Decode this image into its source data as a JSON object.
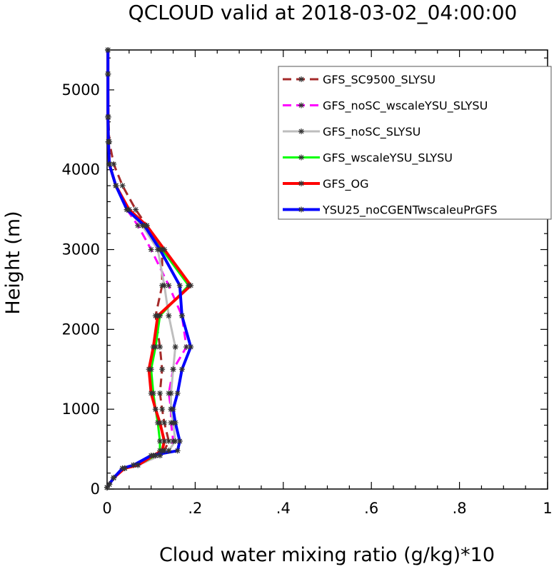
{
  "chart_data": {
    "type": "line",
    "title": "QCLOUD valid at 2018-03-02_04:00:00",
    "xlabel": "Cloud water mixing ratio (g/kg)*10",
    "ylabel": "Height (m)",
    "xlim": [
      0,
      1
    ],
    "ylim": [
      0,
      5500
    ],
    "x_ticks": [
      0,
      0.2,
      0.4,
      0.6,
      0.8,
      1.0
    ],
    "x_tick_labels": [
      "0",
      ".2",
      ".4",
      ".6",
      ".8",
      "1"
    ],
    "y_ticks": [
      0,
      1000,
      2000,
      3000,
      4000,
      5000
    ],
    "y_tick_labels": [
      "0",
      "1000",
      "2000",
      "3000",
      "4000",
      "5000"
    ],
    "grid": false,
    "legend_position": "top-right",
    "series": [
      {
        "name": "GFS_SC9500_SLYSU",
        "color": "#a52a2a",
        "dash": "dashed",
        "width": 3,
        "points": [
          [
            0.0,
            20
          ],
          [
            0.005,
            60
          ],
          [
            0.015,
            140
          ],
          [
            0.035,
            260
          ],
          [
            0.06,
            300
          ],
          [
            0.11,
            420
          ],
          [
            0.13,
            480
          ],
          [
            0.14,
            600
          ],
          [
            0.13,
            830
          ],
          [
            0.125,
            1000
          ],
          [
            0.12,
            1200
          ],
          [
            0.125,
            1500
          ],
          [
            0.12,
            1780
          ],
          [
            0.11,
            2170
          ],
          [
            0.125,
            2550
          ],
          [
            0.125,
            3000
          ],
          [
            0.09,
            3300
          ],
          [
            0.065,
            3500
          ],
          [
            0.035,
            3800
          ],
          [
            0.015,
            4070
          ],
          [
            0.005,
            4350
          ],
          [
            0.003,
            4660
          ],
          [
            0.002,
            5200
          ],
          [
            0.002,
            5500
          ]
        ]
      },
      {
        "name": "GFS_noSC_wscaleYSU_SLYSU",
        "color": "#ff00ff",
        "dash": "dashed",
        "width": 3,
        "points": [
          [
            0.0,
            20
          ],
          [
            0.005,
            60
          ],
          [
            0.015,
            140
          ],
          [
            0.04,
            260
          ],
          [
            0.07,
            300
          ],
          [
            0.12,
            420
          ],
          [
            0.14,
            480
          ],
          [
            0.15,
            600
          ],
          [
            0.145,
            830
          ],
          [
            0.145,
            1000
          ],
          [
            0.14,
            1200
          ],
          [
            0.15,
            1500
          ],
          [
            0.18,
            1780
          ],
          [
            0.17,
            2170
          ],
          [
            0.14,
            2550
          ],
          [
            0.1,
            3000
          ],
          [
            0.07,
            3300
          ],
          [
            0.045,
            3500
          ],
          [
            0.02,
            3800
          ],
          [
            0.005,
            4070
          ],
          [
            0.003,
            4350
          ],
          [
            0.002,
            4660
          ],
          [
            0.002,
            5200
          ],
          [
            0.002,
            5500
          ]
        ]
      },
      {
        "name": "GFS_noSC_SLYSU",
        "color": "#bebebe",
        "dash": "solid",
        "width": 3,
        "points": [
          [
            0.0,
            20
          ],
          [
            0.005,
            60
          ],
          [
            0.015,
            140
          ],
          [
            0.04,
            260
          ],
          [
            0.07,
            300
          ],
          [
            0.12,
            420
          ],
          [
            0.14,
            480
          ],
          [
            0.155,
            600
          ],
          [
            0.15,
            830
          ],
          [
            0.145,
            1000
          ],
          [
            0.145,
            1200
          ],
          [
            0.15,
            1500
          ],
          [
            0.155,
            1780
          ],
          [
            0.14,
            2170
          ],
          [
            0.13,
            2550
          ],
          [
            0.115,
            3000
          ],
          [
            0.08,
            3300
          ],
          [
            0.045,
            3500
          ],
          [
            0.02,
            3800
          ],
          [
            0.005,
            4070
          ],
          [
            0.003,
            4350
          ],
          [
            0.002,
            4660
          ],
          [
            0.002,
            5200
          ],
          [
            0.002,
            5500
          ]
        ]
      },
      {
        "name": "GFS_wscaleYSU_SLYSU",
        "color": "#00ff00",
        "dash": "solid",
        "width": 3,
        "points": [
          [
            0.0,
            20
          ],
          [
            0.005,
            60
          ],
          [
            0.015,
            140
          ],
          [
            0.04,
            260
          ],
          [
            0.07,
            300
          ],
          [
            0.11,
            420
          ],
          [
            0.12,
            480
          ],
          [
            0.12,
            600
          ],
          [
            0.115,
            830
          ],
          [
            0.11,
            1000
          ],
          [
            0.105,
            1200
          ],
          [
            0.1,
            1500
          ],
          [
            0.11,
            1780
          ],
          [
            0.12,
            2170
          ],
          [
            0.185,
            2550
          ],
          [
            0.125,
            3000
          ],
          [
            0.09,
            3300
          ],
          [
            0.05,
            3500
          ],
          [
            0.02,
            3800
          ],
          [
            0.005,
            4070
          ],
          [
            0.003,
            4350
          ],
          [
            0.002,
            4660
          ],
          [
            0.002,
            5200
          ],
          [
            0.002,
            5500
          ]
        ]
      },
      {
        "name": "GFS_OG",
        "color": "#ff0000",
        "dash": "solid",
        "width": 4,
        "points": [
          [
            0.0,
            20
          ],
          [
            0.005,
            60
          ],
          [
            0.015,
            140
          ],
          [
            0.04,
            260
          ],
          [
            0.07,
            300
          ],
          [
            0.105,
            420
          ],
          [
            0.125,
            480
          ],
          [
            0.13,
            600
          ],
          [
            0.12,
            830
          ],
          [
            0.11,
            1000
          ],
          [
            0.1,
            1200
          ],
          [
            0.095,
            1500
          ],
          [
            0.105,
            1780
          ],
          [
            0.115,
            2170
          ],
          [
            0.19,
            2550
          ],
          [
            0.13,
            3000
          ],
          [
            0.09,
            3300
          ],
          [
            0.05,
            3500
          ],
          [
            0.02,
            3800
          ],
          [
            0.005,
            4070
          ],
          [
            0.003,
            4350
          ],
          [
            0.002,
            4660
          ],
          [
            0.002,
            5200
          ],
          [
            0.002,
            5500
          ]
        ]
      },
      {
        "name": "YSU25_noCGENTwscaleuPrGFS",
        "color": "#0000ff",
        "dash": "solid",
        "width": 4,
        "points": [
          [
            0.0,
            20
          ],
          [
            0.005,
            60
          ],
          [
            0.015,
            140
          ],
          [
            0.035,
            260
          ],
          [
            0.06,
            300
          ],
          [
            0.1,
            420
          ],
          [
            0.16,
            480
          ],
          [
            0.165,
            600
          ],
          [
            0.155,
            830
          ],
          [
            0.15,
            1000
          ],
          [
            0.16,
            1200
          ],
          [
            0.17,
            1500
          ],
          [
            0.19,
            1780
          ],
          [
            0.17,
            2170
          ],
          [
            0.165,
            2550
          ],
          [
            0.12,
            3000
          ],
          [
            0.085,
            3300
          ],
          [
            0.045,
            3500
          ],
          [
            0.02,
            3800
          ],
          [
            0.005,
            4070
          ],
          [
            0.003,
            4350
          ],
          [
            0.002,
            4660
          ],
          [
            0.002,
            5200
          ],
          [
            0.002,
            5500
          ]
        ]
      }
    ]
  }
}
